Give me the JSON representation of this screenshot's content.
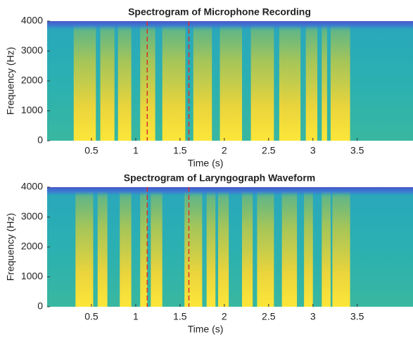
{
  "chart_data": [
    {
      "type": "spectrogram",
      "title": "Spectrogram of Microphone Recording",
      "xlabel": "Time (s)",
      "ylabel": "Frequency (Hz)",
      "xlim": [
        0,
        4.13
      ],
      "xticks": [
        0.5,
        1,
        1.5,
        2,
        2.5,
        3,
        3.5
      ],
      "ylim": [
        0,
        4000
      ],
      "yticks": [
        0,
        1000,
        2000,
        3000,
        4000
      ],
      "markers": [
        1.13,
        1.6
      ],
      "marker_color": "#d9302a",
      "voiced_segments": [
        [
          0.3,
          0.55
        ],
        [
          0.6,
          0.76
        ],
        [
          0.8,
          0.95
        ],
        [
          1.05,
          1.22
        ],
        [
          1.3,
          1.56
        ],
        [
          1.65,
          1.86
        ],
        [
          1.95,
          2.2
        ],
        [
          2.3,
          2.56
        ],
        [
          2.62,
          2.86
        ],
        [
          2.92,
          3.05
        ],
        [
          3.1,
          3.16
        ],
        [
          3.2,
          3.42
        ]
      ]
    },
    {
      "type": "spectrogram",
      "title": "Spectrogram of Laryngograph Waveform",
      "xlabel": "Time (s)",
      "ylabel": "Frequency (Hz)",
      "xlim": [
        0,
        4.13
      ],
      "xticks": [
        0.5,
        1,
        1.5,
        2,
        2.5,
        3,
        3.5
      ],
      "ylim": [
        0,
        4000
      ],
      "yticks": [
        0,
        1000,
        2000,
        3000,
        4000
      ],
      "markers": [
        1.13,
        1.6
      ],
      "marker_color": "#d9302a",
      "voiced_segments": [
        [
          0.32,
          0.52
        ],
        [
          0.57,
          0.68
        ],
        [
          0.82,
          0.95
        ],
        [
          1.05,
          1.13
        ],
        [
          1.17,
          1.3
        ],
        [
          1.55,
          1.75
        ],
        [
          1.8,
          1.9
        ],
        [
          1.93,
          2.05
        ],
        [
          2.2,
          2.32
        ],
        [
          2.37,
          2.56
        ],
        [
          2.65,
          2.82
        ],
        [
          2.9,
          3.0
        ],
        [
          3.1,
          3.2
        ],
        [
          3.22,
          3.42
        ]
      ]
    }
  ]
}
